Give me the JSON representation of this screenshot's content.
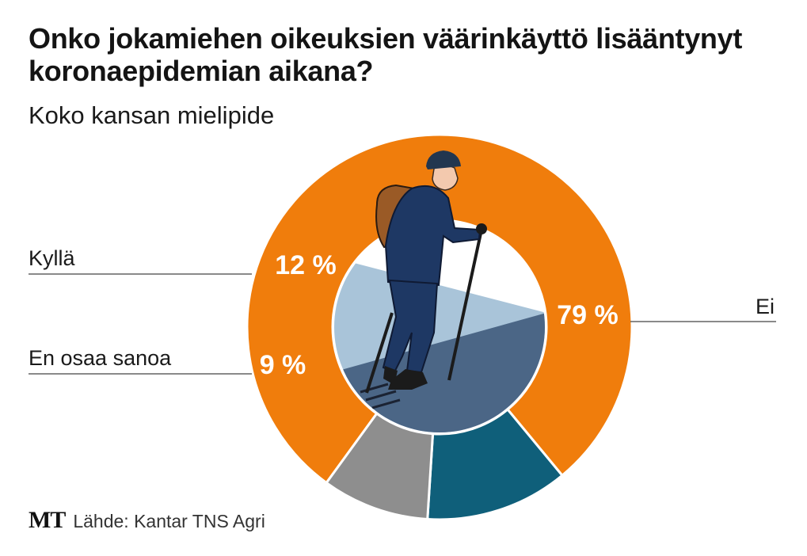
{
  "chart_data": {
    "type": "pie",
    "title": "Onko jokamiehen oikeuksien väärinkäyttö lisääntynyt koronaepidemian aikana?",
    "subtitle": "Koko kansan mielipide",
    "categories": [
      "Ei",
      "Kyllä",
      "En osaa sanoa"
    ],
    "values": [
      79,
      12,
      9
    ],
    "value_labels": [
      "79 %",
      "12 %",
      "9 %"
    ],
    "colors": [
      "#f07d0c",
      "#0f5f7a",
      "#8e8e8e"
    ],
    "style": "donut with illustration of hiker in center",
    "source": "Lähde: Kantar TNS Agri",
    "logo": "MT"
  }
}
